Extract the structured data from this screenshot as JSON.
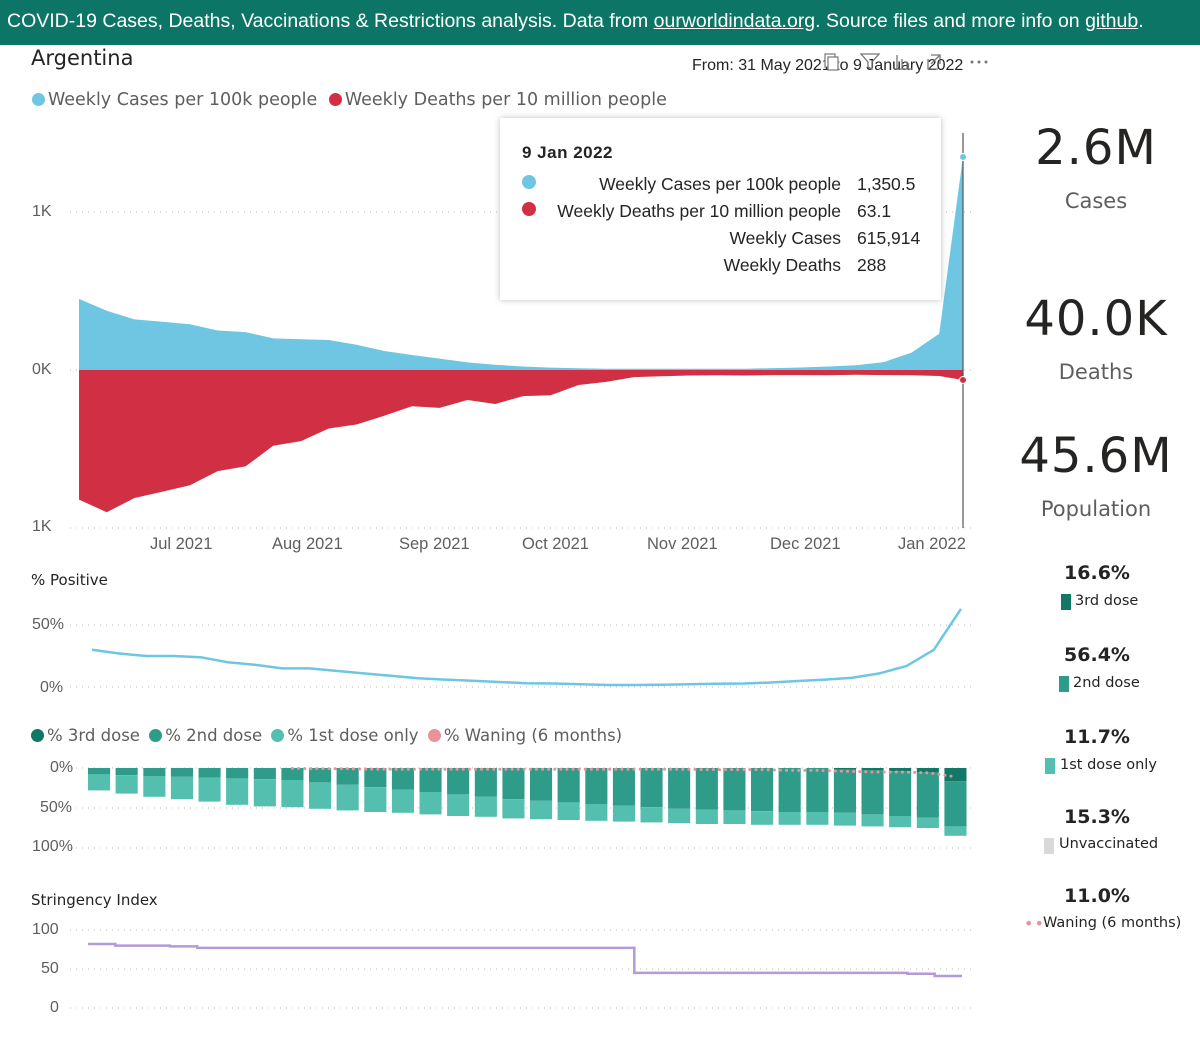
{
  "banner": {
    "text_pre": "COVID-19 Cases, Deaths, Vaccinations & Restrictions  analysis. Data from ",
    "link1": "ourworldindata.org",
    "text_mid": ". Source files and more info on ",
    "link2": "github",
    "text_post": "."
  },
  "header": {
    "country": "Argentina",
    "date_range": "From: 31 May 2021 to 9 January 2022",
    "toolbar_icons": [
      "copy-icon",
      "filter-icon",
      "focus-mode-icon",
      "expand-icon",
      "more-options-icon"
    ]
  },
  "main_chart": {
    "legend": [
      {
        "label": "Weekly Cases per 100k people",
        "color": "#6ec6e2"
      },
      {
        "label": "Weekly Deaths per 10 million people",
        "color": "#d13044"
      }
    ],
    "y_ticks": [
      "1K",
      "0K",
      "1K"
    ],
    "x_ticks": [
      "Jul 2021",
      "Aug 2021",
      "Sep 2021",
      "Oct 2021",
      "Nov 2021",
      "Dec 2021",
      "Jan 2022"
    ]
  },
  "tooltip": {
    "date": "9 Jan 2022",
    "rows": [
      {
        "label": "Weekly Cases per 100k people",
        "value": "1,350.5",
        "color": "#6ec6e2"
      },
      {
        "label": "Weekly Deaths per 10 million people",
        "value": "63.1",
        "color": "#d13044"
      },
      {
        "label": "Weekly Cases",
        "value": "615,914"
      },
      {
        "label": "Weekly Deaths",
        "value": "288"
      }
    ]
  },
  "kpis": [
    {
      "value": "2.6M",
      "label": "Cases"
    },
    {
      "value": "40.0K",
      "label": "Deaths"
    },
    {
      "value": "45.6M",
      "label": "Population"
    }
  ],
  "positive_chart": {
    "title": "% Positive",
    "y_ticks": [
      "50%",
      "0%"
    ]
  },
  "vacc_chart": {
    "legend": [
      {
        "label": "% 3rd dose",
        "color": "#117865"
      },
      {
        "label": "% 2nd dose",
        "color": "#2e9c89"
      },
      {
        "label": "% 1st dose only",
        "color": "#54bfae"
      },
      {
        "label": "% Waning (6 months)",
        "color": "#e8939c"
      }
    ],
    "y_ticks": [
      "0%",
      "50%",
      "100%"
    ]
  },
  "stringency_chart": {
    "title": "Stringency Index",
    "y_ticks": [
      "100",
      "50",
      "0"
    ]
  },
  "vaccination_summary": [
    {
      "value": "16.6%",
      "label": "3rd dose",
      "color": "#117865"
    },
    {
      "value": "56.4%",
      "label": "2nd dose",
      "color": "#2e9c89"
    },
    {
      "value": "11.7%",
      "label": "1st dose only",
      "color": "#54bfae"
    },
    {
      "value": "15.3%",
      "label": "Unvaccinated",
      "color": "#d9d9d9"
    },
    {
      "value": "11.0%",
      "label": "Waning (6 months)",
      "color": "#e8939c"
    }
  ],
  "chart_data": [
    {
      "type": "area",
      "title": "",
      "x": [
        "2021-05-31",
        "2021-06-07",
        "2021-06-14",
        "2021-06-21",
        "2021-06-28",
        "2021-07-05",
        "2021-07-12",
        "2021-07-19",
        "2021-07-26",
        "2021-08-02",
        "2021-08-09",
        "2021-08-16",
        "2021-08-23",
        "2021-08-30",
        "2021-09-06",
        "2021-09-13",
        "2021-09-20",
        "2021-09-27",
        "2021-10-04",
        "2021-10-11",
        "2021-10-18",
        "2021-10-25",
        "2021-11-01",
        "2021-11-08",
        "2021-11-15",
        "2021-11-22",
        "2021-11-29",
        "2021-12-06",
        "2021-12-13",
        "2021-12-20",
        "2021-12-27",
        "2022-01-03",
        "2022-01-09"
      ],
      "series": [
        {
          "name": "Weekly Cases per 100k people",
          "values": [
            450,
            375,
            320,
            305,
            290,
            250,
            240,
            200,
            195,
            190,
            160,
            120,
            95,
            72,
            48,
            33,
            22,
            15,
            11,
            8,
            8,
            8,
            8,
            8,
            8,
            12,
            16,
            22,
            30,
            50,
            110,
            230,
            1350.5
          ]
        },
        {
          "name": "Weekly Deaths per 10 million people",
          "values": [
            -820,
            -900,
            -810,
            -770,
            -730,
            -640,
            -610,
            -480,
            -450,
            -370,
            -345,
            -290,
            -230,
            -240,
            -190,
            -215,
            -165,
            -160,
            -95,
            -75,
            -45,
            -40,
            -35,
            -33,
            -35,
            -32,
            -32,
            -33,
            -30,
            -32,
            -33,
            -38,
            -63.1
          ]
        }
      ],
      "ylim": [
        -1000,
        1000
      ],
      "y_axis_abs_labels": true
    },
    {
      "type": "line",
      "title": "% Positive",
      "x": [
        "2021-05-31",
        "2021-06-07",
        "2021-06-14",
        "2021-06-21",
        "2021-06-28",
        "2021-07-05",
        "2021-07-12",
        "2021-07-19",
        "2021-07-26",
        "2021-08-02",
        "2021-08-09",
        "2021-08-16",
        "2021-08-23",
        "2021-08-30",
        "2021-09-06",
        "2021-09-13",
        "2021-09-20",
        "2021-09-27",
        "2021-10-04",
        "2021-10-11",
        "2021-10-18",
        "2021-10-25",
        "2021-11-01",
        "2021-11-08",
        "2021-11-15",
        "2021-11-22",
        "2021-11-29",
        "2021-12-06",
        "2021-12-13",
        "2021-12-20",
        "2021-12-27",
        "2022-01-03",
        "2022-01-09"
      ],
      "series": [
        {
          "name": "% Positive",
          "values": [
            30,
            27,
            25,
            25,
            24,
            20,
            18,
            15,
            15,
            13,
            11,
            9,
            7,
            6,
            5,
            4,
            3,
            2.8,
            2.2,
            1.6,
            1.6,
            1.8,
            2.2,
            2.6,
            2.8,
            3.6,
            4.8,
            6,
            7.5,
            11,
            17,
            30,
            63
          ]
        }
      ],
      "ylim": [
        0,
        60
      ]
    },
    {
      "type": "bar",
      "title": "",
      "stacked": true,
      "categories": [
        "2021-05-31",
        "2021-06-07",
        "2021-06-14",
        "2021-06-21",
        "2021-06-28",
        "2021-07-05",
        "2021-07-12",
        "2021-07-19",
        "2021-07-26",
        "2021-08-02",
        "2021-08-09",
        "2021-08-16",
        "2021-08-23",
        "2021-08-30",
        "2021-09-06",
        "2021-09-13",
        "2021-09-20",
        "2021-09-27",
        "2021-10-04",
        "2021-10-11",
        "2021-10-18",
        "2021-10-25",
        "2021-11-01",
        "2021-11-08",
        "2021-11-15",
        "2021-11-22",
        "2021-11-29",
        "2021-12-06",
        "2021-12-13",
        "2021-12-20",
        "2021-12-27",
        "2022-01-03"
      ],
      "series": [
        {
          "name": "% 3rd dose",
          "values": [
            0,
            0,
            0,
            0,
            0,
            0,
            0,
            0,
            0,
            0,
            0,
            0,
            0,
            0,
            0,
            0,
            0,
            0,
            0,
            0,
            0,
            0,
            0,
            0,
            0,
            0,
            0,
            2,
            3,
            4,
            5,
            16.6
          ]
        },
        {
          "name": "% 2nd dose",
          "values": [
            8,
            9,
            10,
            11,
            12,
            13,
            14,
            15,
            18,
            21,
            24,
            27,
            30,
            33,
            36,
            39,
            41,
            43,
            45,
            47,
            49,
            51,
            52,
            53,
            54,
            55,
            55,
            54,
            55,
            56,
            57,
            56.4
          ]
        },
        {
          "name": "% 1st dose only",
          "values": [
            20,
            23,
            26,
            28,
            30,
            33,
            34,
            34,
            33,
            32,
            31,
            29,
            28,
            27,
            25,
            24,
            23,
            22,
            21,
            20,
            19,
            18,
            18,
            17,
            17,
            16,
            16,
            16,
            15,
            14,
            13,
            11.7
          ]
        },
        {
          "name": "% Waning (6 months)",
          "values": [
            null,
            null,
            null,
            null,
            null,
            null,
            null,
            0.5,
            1,
            1,
            1.5,
            1.5,
            1.5,
            1.5,
            1.5,
            1.5,
            1.5,
            1.5,
            1.5,
            1.5,
            1.5,
            1.5,
            2,
            2,
            2,
            3,
            3,
            4,
            5,
            5,
            6,
            11
          ]
        }
      ],
      "ylim": [
        0,
        100
      ],
      "y_inverted": true
    },
    {
      "type": "line",
      "title": "Stringency Index",
      "x": [
        "2021-05-31",
        "2021-06-07",
        "2021-06-14",
        "2021-06-21",
        "2021-06-28",
        "2021-07-05",
        "2021-07-12",
        "2021-07-19",
        "2021-07-26",
        "2021-08-02",
        "2021-08-09",
        "2021-08-16",
        "2021-08-23",
        "2021-08-30",
        "2021-09-06",
        "2021-09-13",
        "2021-09-20",
        "2021-09-27",
        "2021-10-04",
        "2021-10-11",
        "2021-10-18",
        "2021-10-25",
        "2021-11-01",
        "2021-11-08",
        "2021-11-15",
        "2021-11-22",
        "2021-11-29",
        "2021-12-06",
        "2021-12-13",
        "2021-12-20",
        "2021-12-27",
        "2022-01-03",
        "2022-01-09"
      ],
      "series": [
        {
          "name": "Stringency Index",
          "values": [
            82,
            80,
            80,
            79,
            77,
            77,
            77,
            77,
            77,
            77,
            77,
            77,
            77,
            77,
            77,
            77,
            77,
            77,
            77,
            77,
            45,
            45,
            45,
            45,
            45,
            45,
            45,
            45,
            45,
            45,
            44,
            41,
            41
          ]
        }
      ],
      "ylim": [
        0,
        100
      ],
      "step": true
    }
  ]
}
